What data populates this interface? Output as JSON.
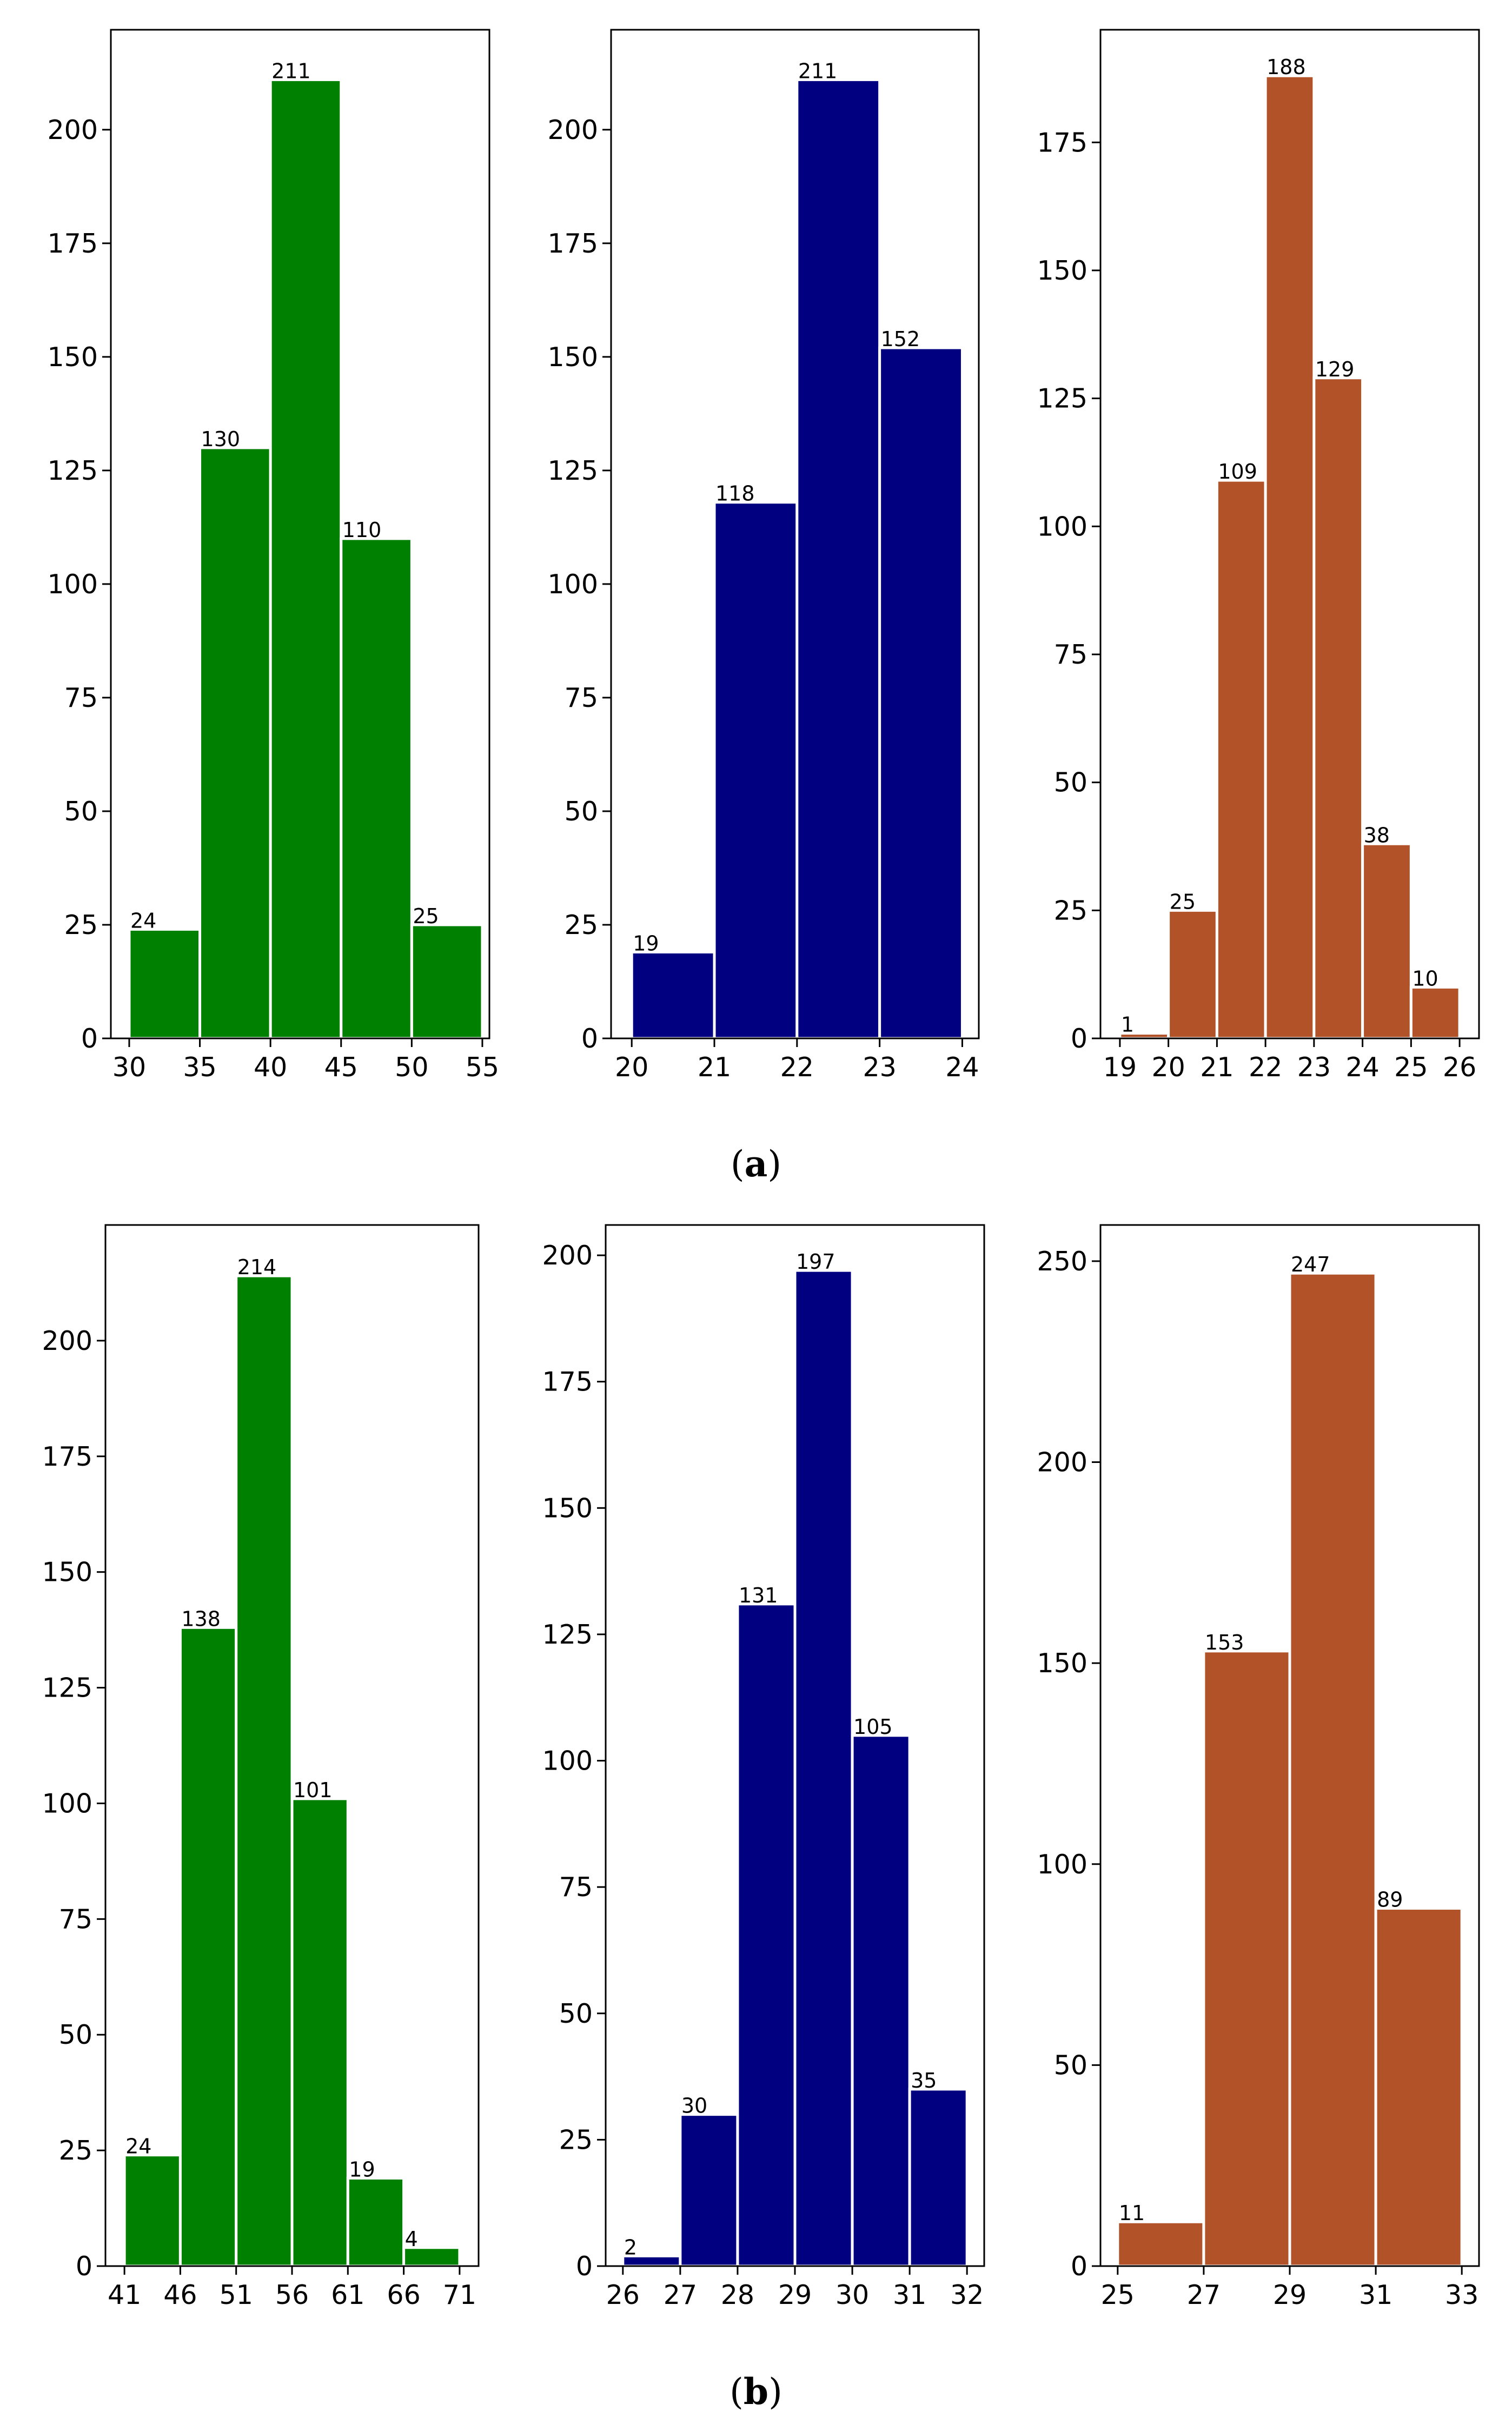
{
  "figure": {
    "captions": [
      {
        "open": "(",
        "letter": "a",
        "close": ")"
      },
      {
        "open": "(",
        "letter": "b",
        "close": ")"
      }
    ]
  },
  "chart_data": [
    {
      "type": "bar",
      "row": "a",
      "color": "#008000",
      "bin_edges": [
        30,
        35,
        40,
        45,
        50,
        55
      ],
      "values": [
        24,
        130,
        211,
        110,
        25
      ],
      "xticks": [
        30,
        35,
        40,
        45,
        50,
        55
      ],
      "yticks": [
        0,
        25,
        50,
        75,
        100,
        125,
        150,
        175,
        200
      ],
      "xlim": [
        28.7,
        55.5
      ],
      "ylim": [
        0,
        222
      ]
    },
    {
      "type": "bar",
      "row": "a",
      "color": "#000080",
      "bin_edges": [
        20,
        21,
        22,
        23,
        24
      ],
      "values": [
        19,
        118,
        211,
        152
      ],
      "xticks": [
        20,
        21,
        22,
        23,
        24
      ],
      "yticks": [
        0,
        25,
        50,
        75,
        100,
        125,
        150,
        175,
        200
      ],
      "xlim": [
        19.75,
        24.2
      ],
      "ylim": [
        0,
        222
      ]
    },
    {
      "type": "bar",
      "row": "a",
      "color": "#b15228",
      "bin_edges": [
        19,
        20,
        21,
        22,
        23,
        24,
        25,
        26
      ],
      "values": [
        1,
        25,
        109,
        188,
        129,
        38,
        10
      ],
      "xticks": [
        19,
        20,
        21,
        22,
        23,
        24,
        25,
        26
      ],
      "yticks": [
        0,
        25,
        50,
        75,
        100,
        125,
        150,
        175
      ],
      "xlim": [
        18.6,
        26.4
      ],
      "ylim": [
        0,
        197
      ]
    },
    {
      "type": "bar",
      "row": "b",
      "color": "#008000",
      "bin_edges": [
        41,
        46,
        51,
        56,
        61,
        66,
        71
      ],
      "values": [
        24,
        138,
        214,
        101,
        19,
        4
      ],
      "xticks": [
        41,
        46,
        51,
        56,
        61,
        66,
        71
      ],
      "yticks": [
        0,
        25,
        50,
        75,
        100,
        125,
        150,
        175,
        200
      ],
      "xlim": [
        39.3,
        72.7
      ],
      "ylim": [
        0,
        225
      ]
    },
    {
      "type": "bar",
      "row": "b",
      "color": "#000080",
      "bin_edges": [
        26,
        27,
        28,
        29,
        30,
        31,
        32
      ],
      "values": [
        2,
        30,
        131,
        197,
        105,
        35
      ],
      "xticks": [
        26,
        27,
        28,
        29,
        30,
        31,
        32
      ],
      "yticks": [
        0,
        25,
        50,
        75,
        100,
        125,
        150,
        175,
        200
      ],
      "xlim": [
        25.7,
        32.3
      ],
      "ylim": [
        0,
        206
      ]
    },
    {
      "type": "bar",
      "row": "b",
      "color": "#b15228",
      "bin_edges": [
        25,
        27,
        29,
        31,
        33
      ],
      "values": [
        11,
        153,
        247,
        89
      ],
      "xticks": [
        25,
        27,
        29,
        31,
        33
      ],
      "yticks": [
        0,
        50,
        100,
        150,
        200,
        250
      ],
      "xlim": [
        24.6,
        33.4
      ],
      "ylim": [
        0,
        259
      ]
    }
  ]
}
